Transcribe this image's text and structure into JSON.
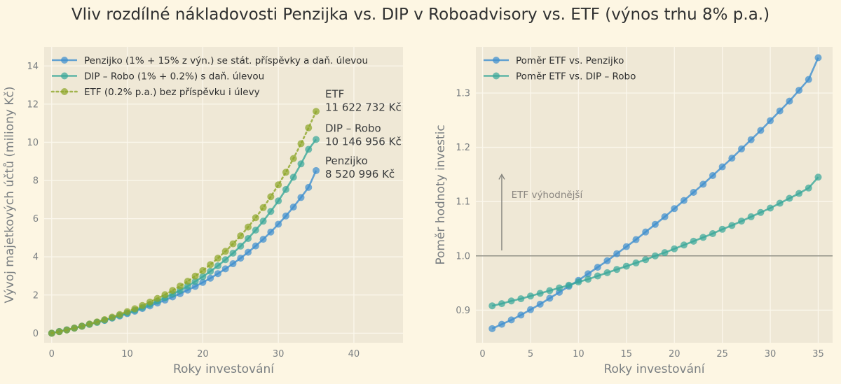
{
  "title": "Vliv rozdílné nákladovosti Penzijka vs. DIP v Roboadvisory vs. ETF (výnos trhu 8% p.a.)",
  "colors": {
    "background": "#fdf6e3",
    "axes_bg": "#efe8d6",
    "grid": "#fbf7ec",
    "blue": "#3f8fcf",
    "teal": "#3aa79a",
    "olive": "#8ea62a",
    "refline": "#8b8b80"
  },
  "chart_data": [
    {
      "type": "line",
      "id": "left",
      "title": "",
      "xlabel": "Roky investování",
      "ylabel": "Vývoj majetkových účtů (miliony Kč)",
      "xlim": [
        -1,
        46.5
      ],
      "ylim": [
        -0.5,
        15
      ],
      "xticks": [
        0,
        10,
        20,
        30,
        40
      ],
      "yticks": [
        0,
        2,
        4,
        6,
        8,
        10,
        12,
        14
      ],
      "grid": true,
      "legend_position": "top-left",
      "x": [
        0,
        1,
        2,
        3,
        4,
        5,
        6,
        7,
        8,
        9,
        10,
        11,
        12,
        13,
        14,
        15,
        16,
        17,
        18,
        19,
        20,
        21,
        22,
        23,
        24,
        25,
        26,
        27,
        28,
        29,
        30,
        31,
        32,
        33,
        34,
        35
      ],
      "series": [
        {
          "name": "Penzijko (1% + 15% z výn.) se stát. příspěvky a daň. úlevou",
          "color_key": "blue",
          "style": "solid",
          "values": [
            0,
            0.09,
            0.18,
            0.27,
            0.37,
            0.47,
            0.57,
            0.67,
            0.79,
            0.9,
            1.02,
            1.15,
            1.29,
            1.43,
            1.58,
            1.73,
            1.9,
            2.07,
            2.26,
            2.45,
            2.66,
            2.88,
            3.12,
            3.37,
            3.64,
            3.93,
            4.24,
            4.57,
            4.92,
            5.3,
            5.71,
            6.14,
            6.61,
            7.11,
            7.64,
            8.52
          ]
        },
        {
          "name": "DIP – Robo (1% + 0.2%) s daň. úlevou",
          "color_key": "teal",
          "style": "solid",
          "values": [
            0,
            0.08,
            0.17,
            0.26,
            0.36,
            0.46,
            0.57,
            0.68,
            0.8,
            0.93,
            1.06,
            1.2,
            1.35,
            1.51,
            1.68,
            1.86,
            2.05,
            2.25,
            2.47,
            2.71,
            2.96,
            3.24,
            3.53,
            3.85,
            4.19,
            4.56,
            4.96,
            5.4,
            5.87,
            6.38,
            6.93,
            7.53,
            8.17,
            8.87,
            9.63,
            10.15
          ]
        },
        {
          "name": "ETF (0.2% p.a.) bez příspěvku i úlevy",
          "color_key": "olive",
          "style": "dotted",
          "values": [
            0,
            0.08,
            0.17,
            0.27,
            0.37,
            0.48,
            0.59,
            0.71,
            0.84,
            0.98,
            1.13,
            1.28,
            1.45,
            1.63,
            1.82,
            2.02,
            2.24,
            2.47,
            2.72,
            2.99,
            3.28,
            3.59,
            3.93,
            4.29,
            4.68,
            5.1,
            5.56,
            6.05,
            6.58,
            7.15,
            7.77,
            8.43,
            9.15,
            9.93,
            10.76,
            11.62
          ]
        }
      ],
      "annotations": [
        {
          "label": "ETF",
          "value": "11 622 732 Kč"
        },
        {
          "label": "DIP – Robo",
          "value": "10 146 956 Kč"
        },
        {
          "label": "Penzijko",
          "value": "8 520 996 Kč"
        }
      ]
    },
    {
      "type": "line",
      "id": "right",
      "title": "",
      "xlabel": "Roky investování",
      "ylabel": "Poměr hodnoty investic",
      "xlim": [
        -0.7,
        36.5
      ],
      "ylim": [
        0.84,
        1.385
      ],
      "xticks": [
        0,
        5,
        10,
        15,
        20,
        25,
        30,
        35
      ],
      "yticks": [
        0.9,
        1.0,
        1.1,
        1.2,
        1.3
      ],
      "grid": true,
      "legend_position": "top-left",
      "reference_line": 1.0,
      "arrow_text": "ETF výhodnější",
      "x": [
        1,
        2,
        3,
        4,
        5,
        6,
        7,
        8,
        9,
        10,
        11,
        12,
        13,
        14,
        15,
        16,
        17,
        18,
        19,
        20,
        21,
        22,
        23,
        24,
        25,
        26,
        27,
        28,
        29,
        30,
        31,
        32,
        33,
        34,
        35
      ],
      "series": [
        {
          "name": "Poměr ETF vs. Penzijko",
          "color_key": "blue",
          "style": "solid",
          "values": [
            0.866,
            0.874,
            0.882,
            0.891,
            0.901,
            0.911,
            0.922,
            0.933,
            0.944,
            0.955,
            0.967,
            0.979,
            0.991,
            1.004,
            1.017,
            1.03,
            1.044,
            1.058,
            1.072,
            1.087,
            1.102,
            1.117,
            1.132,
            1.148,
            1.164,
            1.18,
            1.197,
            1.214,
            1.231,
            1.249,
            1.267,
            1.285,
            1.305,
            1.325,
            1.365
          ]
        },
        {
          "name": "Poměr ETF vs. DIP – Robo",
          "color_key": "teal",
          "style": "solid",
          "values": [
            0.908,
            0.912,
            0.917,
            0.921,
            0.926,
            0.931,
            0.936,
            0.941,
            0.946,
            0.952,
            0.957,
            0.963,
            0.969,
            0.975,
            0.981,
            0.987,
            0.993,
            1.0,
            1.006,
            1.013,
            1.02,
            1.027,
            1.034,
            1.041,
            1.049,
            1.056,
            1.064,
            1.072,
            1.08,
            1.088,
            1.097,
            1.106,
            1.115,
            1.125,
            1.145
          ]
        }
      ]
    }
  ]
}
